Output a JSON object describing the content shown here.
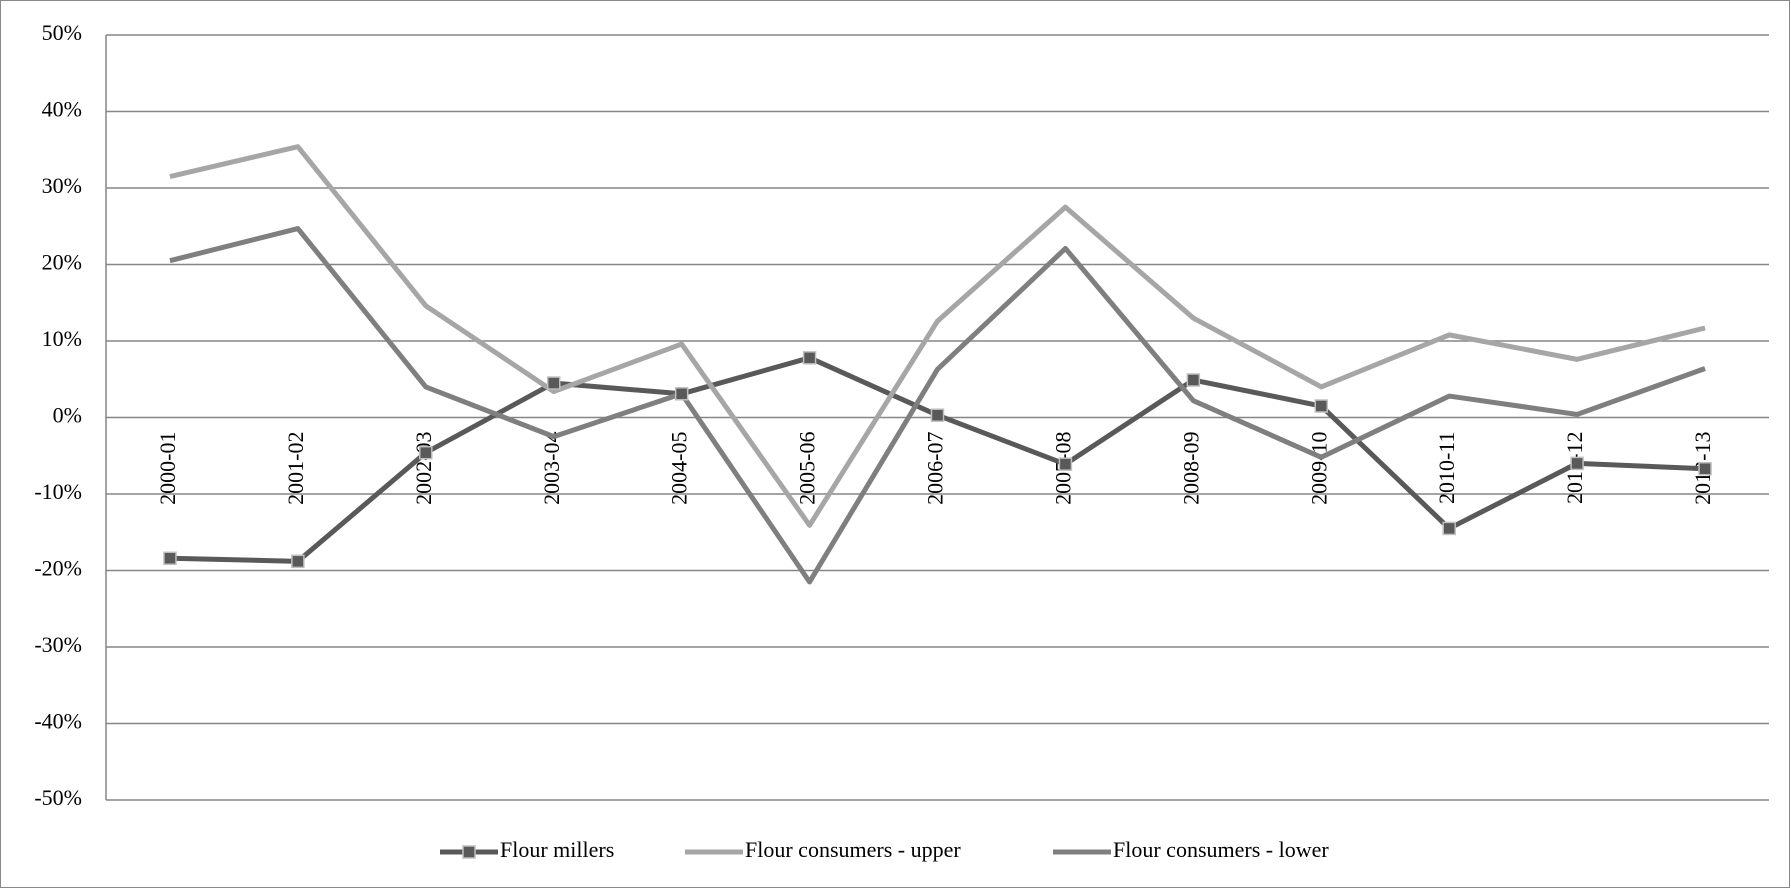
{
  "chart_data": {
    "type": "line",
    "categories": [
      "2000-01",
      "2001-02",
      "2002-03",
      "2003-04",
      "2004-05",
      "2005-06",
      "2006-07",
      "2007-08",
      "2008-09",
      "2009-10",
      "2010-11",
      "2011-12",
      "2012-13"
    ],
    "series": [
      {
        "name": "Flour millers",
        "color": "#595959",
        "marker": "square",
        "values": [
          -18.4,
          -18.8,
          -4.6,
          4.5,
          3.1,
          7.8,
          0.3,
          -6.1,
          4.9,
          1.5,
          -14.5,
          -6.0,
          -6.7
        ]
      },
      {
        "name": "Flour consumers - upper",
        "color": "#a6a6a6",
        "values": [
          31.5,
          35.4,
          14.6,
          3.4,
          9.6,
          -14.1,
          12.6,
          27.5,
          13.0,
          4.0,
          10.8,
          7.6,
          11.7
        ]
      },
      {
        "name": "Flour consumers - lower",
        "color": "#7f7f7f",
        "values": [
          20.5,
          24.7,
          4.0,
          -2.5,
          3.1,
          -21.5,
          6.3,
          22.1,
          2.2,
          -5.2,
          2.8,
          0.4,
          6.4
        ]
      }
    ],
    "ylim": [
      -50,
      50
    ],
    "yticks": [
      {
        "value": -50,
        "label": "-50%"
      },
      {
        "value": -40,
        "label": "-40%"
      },
      {
        "value": -30,
        "label": "-30%"
      },
      {
        "value": -20,
        "label": "-20%"
      },
      {
        "value": -10,
        "label": "-10%"
      },
      {
        "value": 0,
        "label": "0%"
      },
      {
        "value": 10,
        "label": "10%"
      },
      {
        "value": 20,
        "label": "20%"
      },
      {
        "value": 30,
        "label": "30%"
      },
      {
        "value": 40,
        "label": "40%"
      },
      {
        "value": 50,
        "label": "50%"
      }
    ],
    "grid": true,
    "legend": "bottom"
  }
}
